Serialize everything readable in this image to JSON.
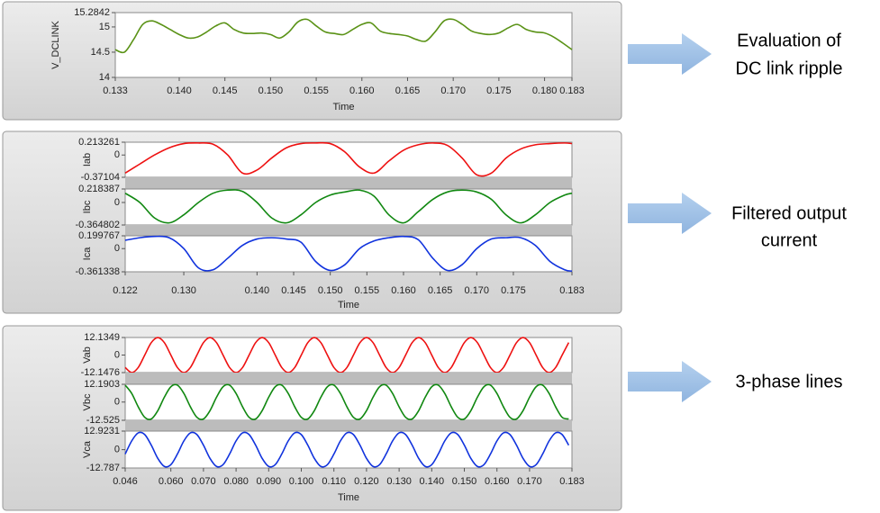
{
  "chart_data": [
    {
      "type": "line",
      "xlabel": "Time",
      "xlim": [
        0.133,
        0.183
      ],
      "xticks": [
        0.133,
        {
          "value": 0.14,
          "label": "0.140"
        },
        0.145,
        {
          "value": 0.15,
          "label": "0.150"
        },
        0.155,
        {
          "value": 0.16,
          "label": "0.160"
        },
        0.165,
        {
          "value": 0.17,
          "label": "0.170"
        },
        0.175,
        {
          "value": 0.18,
          "label": "0.180"
        },
        0.183
      ],
      "x": [
        0.133,
        0.134,
        0.135,
        0.136,
        0.137,
        0.138,
        0.139,
        0.14,
        0.141,
        0.142,
        0.143,
        0.144,
        0.145,
        0.146,
        0.147,
        0.148,
        0.149,
        0.15,
        0.151,
        0.152,
        0.153,
        0.154,
        0.155,
        0.156,
        0.157,
        0.158,
        0.159,
        0.16,
        0.161,
        0.162,
        0.163,
        0.164,
        0.165,
        0.166,
        0.167,
        0.168,
        0.169,
        0.17,
        0.171,
        0.172,
        0.173,
        0.174,
        0.175,
        0.176,
        0.177,
        0.178,
        0.179,
        0.18,
        0.181,
        0.182,
        0.183
      ],
      "series": [
        {
          "name": "V_DCLINK",
          "color": "#5a9216",
          "ylim": [
            14,
            15.2842
          ],
          "yticks": [
            14,
            14.5,
            15,
            15.2842
          ],
          "values": [
            14.55,
            14.5,
            14.75,
            15.05,
            15.12,
            15.05,
            14.95,
            14.85,
            14.78,
            14.8,
            14.9,
            15.02,
            15.08,
            14.95,
            14.88,
            14.87,
            14.88,
            14.85,
            14.78,
            14.9,
            15.1,
            15.15,
            15.02,
            14.9,
            14.87,
            14.85,
            14.95,
            15.05,
            15.08,
            14.92,
            14.87,
            14.85,
            14.82,
            14.75,
            14.72,
            14.9,
            15.12,
            15.15,
            15.05,
            14.92,
            14.87,
            14.85,
            14.88,
            14.98,
            15.05,
            14.95,
            14.9,
            14.88,
            14.8,
            14.68,
            14.55
          ]
        }
      ]
    },
    {
      "type": "line",
      "xlabel": "Time",
      "xlim": [
        0.122,
        0.183
      ],
      "xticks": [
        0.122,
        {
          "value": 0.13,
          "label": "0.130"
        },
        {
          "value": 0.14,
          "label": "0.140"
        },
        0.145,
        {
          "value": 0.15,
          "label": "0.150"
        },
        0.155,
        {
          "value": 0.16,
          "label": "0.160"
        },
        0.165,
        {
          "value": 0.17,
          "label": "0.170"
        },
        0.175,
        0.183
      ],
      "x": [
        0.122,
        0.124,
        0.126,
        0.128,
        0.13,
        0.132,
        0.134,
        0.136,
        0.138,
        0.14,
        0.142,
        0.144,
        0.146,
        0.148,
        0.15,
        0.152,
        0.154,
        0.156,
        0.158,
        0.16,
        0.162,
        0.164,
        0.166,
        0.168,
        0.17,
        0.172,
        0.174,
        0.176,
        0.178,
        0.18,
        0.182,
        0.183
      ],
      "series": [
        {
          "name": "Iab",
          "color": "#ee1111",
          "ylim": [
            -0.37104,
            0.213261
          ],
          "yticks": [
            0.213261,
            0,
            -0.37104
          ],
          "values": [
            -0.3,
            -0.15,
            0,
            0.12,
            0.19,
            0.2,
            0.18,
            0,
            -0.3,
            -0.25,
            -0.05,
            0.12,
            0.19,
            0.2,
            0.19,
            0.05,
            -0.2,
            -0.3,
            -0.1,
            0.08,
            0.17,
            0.2,
            0.16,
            -0.05,
            -0.33,
            -0.3,
            -0.05,
            0.1,
            0.17,
            0.19,
            0.2,
            0.19
          ]
        },
        {
          "name": "Ibc",
          "color": "#118811",
          "ylim": [
            -0.364802,
            0.218387
          ],
          "yticks": [
            0.218387,
            0,
            -0.364802
          ],
          "values": [
            0.15,
            0,
            -0.25,
            -0.33,
            -0.2,
            0,
            0.15,
            0.2,
            0.18,
            0,
            -0.25,
            -0.33,
            -0.2,
            0,
            0.12,
            0.17,
            0.2,
            0.1,
            -0.2,
            -0.33,
            -0.15,
            0.05,
            0.17,
            0.2,
            0.17,
            0.05,
            -0.2,
            -0.33,
            -0.2,
            0,
            0.12,
            0.15
          ]
        },
        {
          "name": "Ica",
          "color": "#1133dd",
          "ylim": [
            -0.361338,
            0.199767
          ],
          "yticks": [
            0.199767,
            0,
            -0.361338
          ],
          "values": [
            0.13,
            0.17,
            0.19,
            0.17,
            0,
            -0.3,
            -0.33,
            -0.15,
            0.05,
            0.15,
            0.17,
            0.15,
            0.1,
            -0.2,
            -0.34,
            -0.25,
            0,
            0.12,
            0.17,
            0.19,
            0.14,
            -0.15,
            -0.34,
            -0.25,
            0,
            0.15,
            0.17,
            0.17,
            0.05,
            -0.2,
            -0.33,
            -0.35
          ]
        }
      ]
    },
    {
      "type": "line",
      "xlabel": "Time",
      "xlim": [
        0.046,
        0.183
      ],
      "xticks": [
        0.046,
        {
          "value": 0.06,
          "label": "0.060"
        },
        {
          "value": 0.07,
          "label": "0.070"
        },
        {
          "value": 0.08,
          "label": "0.080"
        },
        {
          "value": 0.09,
          "label": "0.090"
        },
        {
          "value": 0.1,
          "label": "0.100"
        },
        {
          "value": 0.11,
          "label": "0.110"
        },
        {
          "value": 0.12,
          "label": "0.120"
        },
        {
          "value": 0.13,
          "label": "0.130"
        },
        {
          "value": 0.14,
          "label": "0.140"
        },
        {
          "value": 0.15,
          "label": "0.150"
        },
        {
          "value": 0.16,
          "label": "0.160"
        },
        {
          "value": 0.17,
          "label": "0.170"
        },
        0.183
      ],
      "x": [
        0.046,
        0.048,
        0.05,
        0.052,
        0.054,
        0.056,
        0.058,
        0.06,
        0.062,
        0.064,
        0.066,
        0.068,
        0.07,
        0.072,
        0.074,
        0.076,
        0.078,
        0.08,
        0.082,
        0.084,
        0.086,
        0.088,
        0.09,
        0.092,
        0.094,
        0.096,
        0.098,
        0.1,
        0.102,
        0.104,
        0.106,
        0.108,
        0.11,
        0.112,
        0.114,
        0.116,
        0.118,
        0.12,
        0.122,
        0.124,
        0.126,
        0.128,
        0.13,
        0.132,
        0.134,
        0.136,
        0.138,
        0.14,
        0.142,
        0.144,
        0.146,
        0.148,
        0.15,
        0.152,
        0.154,
        0.156,
        0.158,
        0.16,
        0.162,
        0.164,
        0.166,
        0.168,
        0.17,
        0.172,
        0.174,
        0.176,
        0.178,
        0.18,
        0.182
      ],
      "series": [
        {
          "name": "Vab",
          "color": "#ee1111",
          "ylim": [
            -12.1476,
            12.1349
          ],
          "yticks": [
            12.1349,
            0,
            -12.1476
          ],
          "values": [
            -8.6,
            -12.1,
            -8.6,
            0,
            8.6,
            12.1,
            8.6,
            0,
            -8.6,
            -12.1,
            -8.6,
            0,
            8.6,
            12.1,
            8.6,
            0,
            -8.6,
            -12.1,
            -8.6,
            0,
            8.6,
            12.1,
            8.6,
            0,
            -8.6,
            -12.1,
            -8.6,
            0,
            8.6,
            12.1,
            8.6,
            0,
            -8.6,
            -12.1,
            -8.6,
            0,
            8.6,
            12.1,
            8.6,
            0,
            -8.6,
            -12.1,
            -8.6,
            0,
            8.6,
            12.1,
            8.6,
            0,
            -8.6,
            -12.1,
            -8.6,
            0,
            8.6,
            12.1,
            8.6,
            0,
            -8.6,
            -12.1,
            -8.6,
            0,
            8.6,
            12.1,
            8.6,
            0,
            -8.6,
            -12.1,
            -8.6,
            0,
            8.6
          ]
        },
        {
          "name": "Vbc",
          "color": "#118811",
          "ylim": [
            -12.525,
            12.1903
          ],
          "yticks": [
            12.1903,
            0,
            -12.525
          ],
          "values": [
            11.6,
            5.9,
            -3.3,
            -10.5,
            -11.6,
            -5.9,
            3.3,
            10.5,
            11.6,
            5.9,
            -3.3,
            -10.5,
            -11.6,
            -5.9,
            3.3,
            10.5,
            11.6,
            5.9,
            -3.3,
            -10.5,
            -11.6,
            -5.9,
            3.3,
            10.5,
            11.6,
            5.9,
            -3.3,
            -10.5,
            -11.6,
            -5.9,
            3.3,
            10.5,
            11.6,
            5.9,
            -3.3,
            -10.5,
            -11.6,
            -5.9,
            3.3,
            10.5,
            11.6,
            5.9,
            -3.3,
            -10.5,
            -11.6,
            -5.9,
            3.3,
            10.5,
            11.6,
            5.9,
            -3.3,
            -10.5,
            -11.6,
            -5.9,
            3.3,
            10.5,
            11.6,
            5.9,
            -3.3,
            -10.5,
            -11.6,
            -5.9,
            3.3,
            10.5,
            11.6,
            5.9,
            -3.3,
            -10.5,
            -11.6
          ]
        },
        {
          "name": "Vca",
          "color": "#1133dd",
          "ylim": [
            -12.787,
            12.9231
          ],
          "yticks": [
            12.9231,
            0,
            -12.787
          ],
          "values": [
            -3.1,
            6.1,
            11.7,
            10.5,
            3.1,
            -6.1,
            -11.7,
            -10.5,
            -3.1,
            6.1,
            11.7,
            10.5,
            3.1,
            -6.1,
            -11.7,
            -10.5,
            -3.1,
            6.1,
            11.7,
            10.5,
            3.1,
            -6.1,
            -11.7,
            -10.5,
            -3.1,
            6.1,
            11.7,
            10.5,
            3.1,
            -6.1,
            -11.7,
            -10.5,
            -3.1,
            6.1,
            11.7,
            10.5,
            3.1,
            -6.1,
            -11.7,
            -10.5,
            -3.1,
            6.1,
            11.7,
            10.5,
            3.1,
            -6.1,
            -11.7,
            -10.5,
            -3.1,
            6.1,
            11.7,
            10.5,
            3.1,
            -6.1,
            -11.7,
            -10.5,
            -3.1,
            6.1,
            11.7,
            10.5,
            3.1,
            -6.1,
            -11.7,
            -10.5,
            -3.1,
            6.1,
            11.7,
            10.5,
            3.1
          ]
        }
      ]
    }
  ],
  "annotations": [
    {
      "lines": [
        "Evaluation of",
        "DC link ripple"
      ]
    },
    {
      "lines": [
        "Filtered output",
        "current"
      ]
    },
    {
      "lines": [
        "3-phase lines"
      ]
    }
  ]
}
